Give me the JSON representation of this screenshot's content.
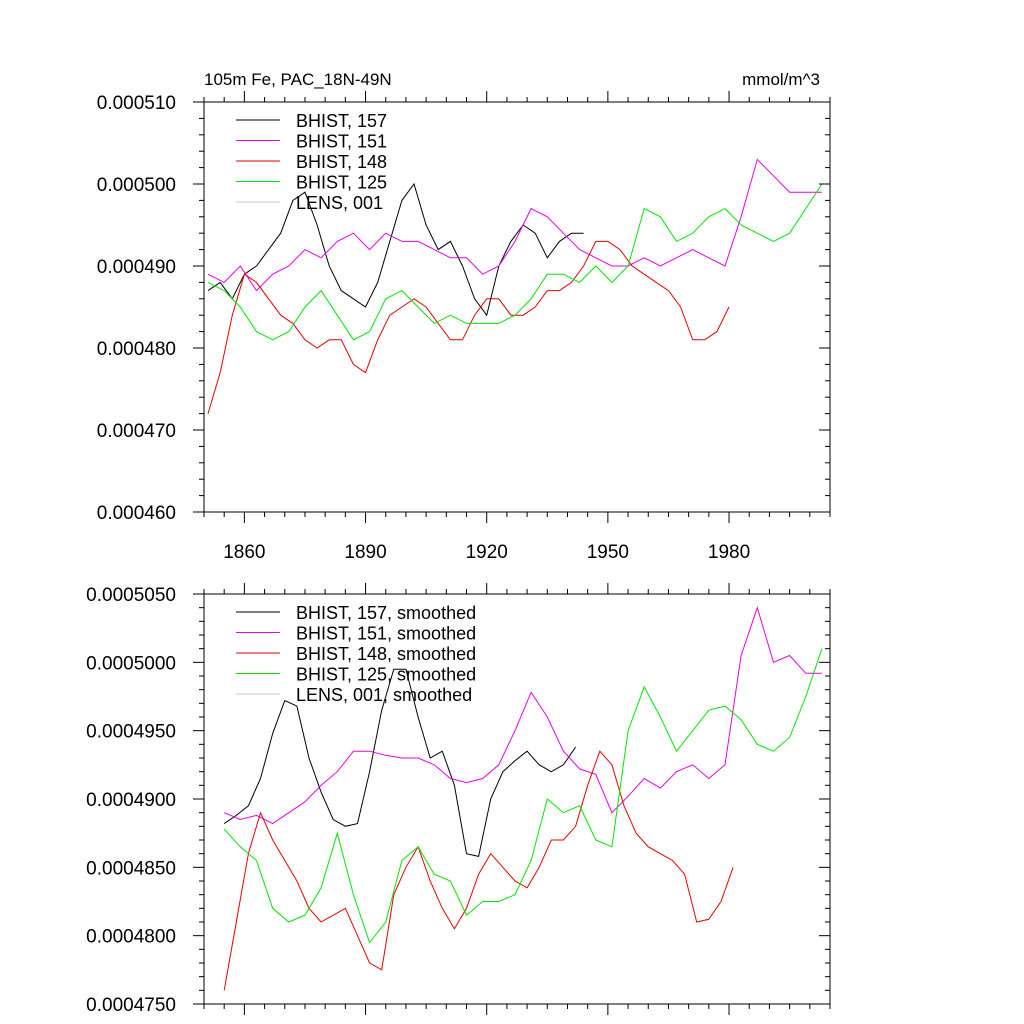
{
  "colors": {
    "axis": "#000000",
    "BHIST_157": "#000000",
    "BHIST_151": "#e600e6",
    "BHIST_148": "#e60000",
    "BHIST_125": "#00e600",
    "LENS_001": "#c8c8c8"
  },
  "chart_data": [
    {
      "type": "line",
      "title": "105m Fe, PAC_18N-49N",
      "units": "mmol/m^3",
      "xlim": [
        1850,
        2005
      ],
      "ylim": [
        0.00046,
        0.00051
      ],
      "xticks": [
        1860,
        1890,
        1920,
        1950,
        1980
      ],
      "xtick_labels": [
        "1860",
        "1890",
        "1920",
        "1950",
        "1980"
      ],
      "yticks": [
        0.00046,
        0.00047,
        0.00048,
        0.00049,
        0.0005,
        0.00051
      ],
      "ytick_labels": [
        "0.000460",
        "0.000470",
        "0.000480",
        "0.000490",
        "0.000500",
        "0.000510"
      ],
      "legend_position": "top-left",
      "series": [
        {
          "name": "BHIST, 157",
          "color": "#000000",
          "x": [
            1851,
            1854,
            1857,
            1860,
            1863,
            1866,
            1869,
            1872,
            1875,
            1878,
            1881,
            1884,
            1887,
            1890,
            1893,
            1896,
            1899,
            1902,
            1905,
            1908,
            1911,
            1914,
            1917,
            1920,
            1923,
            1926,
            1929,
            1932,
            1935,
            1938,
            1941,
            1944
          ],
          "y": [
            0.000487,
            0.000488,
            0.000486,
            0.000489,
            0.00049,
            0.000492,
            0.000494,
            0.000498,
            0.000499,
            0.000495,
            0.00049,
            0.000487,
            0.000486,
            0.000485,
            0.000488,
            0.000493,
            0.000498,
            0.0005,
            0.000495,
            0.000492,
            0.000493,
            0.00049,
            0.000486,
            0.000484,
            0.00049,
            0.000493,
            0.000495,
            0.000494,
            0.000491,
            0.000493,
            0.000494,
            0.000494
          ]
        },
        {
          "name": "BHIST, 151",
          "color": "#e600e6",
          "x": [
            1851,
            1855,
            1859,
            1863,
            1867,
            1871,
            1875,
            1879,
            1883,
            1887,
            1891,
            1895,
            1899,
            1903,
            1907,
            1911,
            1915,
            1919,
            1923,
            1927,
            1931,
            1935,
            1939,
            1943,
            1947,
            1951,
            1955,
            1959,
            1963,
            1967,
            1971,
            1975,
            1979,
            1983,
            1987,
            1991,
            1995,
            1999,
            2003
          ],
          "y": [
            0.000489,
            0.000488,
            0.00049,
            0.000487,
            0.000489,
            0.00049,
            0.000492,
            0.000491,
            0.000493,
            0.000494,
            0.000492,
            0.000494,
            0.000493,
            0.000493,
            0.000492,
            0.000491,
            0.000491,
            0.000489,
            0.00049,
            0.000493,
            0.000497,
            0.000496,
            0.000494,
            0.000492,
            0.000491,
            0.00049,
            0.00049,
            0.000491,
            0.00049,
            0.000491,
            0.000492,
            0.000491,
            0.00049,
            0.000496,
            0.000503,
            0.000501,
            0.000499,
            0.000499,
            0.000499
          ]
        },
        {
          "name": "BHIST, 148",
          "color": "#e60000",
          "x": [
            1851,
            1854,
            1857,
            1860,
            1863,
            1866,
            1869,
            1872,
            1875,
            1878,
            1881,
            1884,
            1887,
            1890,
            1893,
            1896,
            1899,
            1902,
            1905,
            1908,
            1911,
            1914,
            1917,
            1920,
            1923,
            1926,
            1929,
            1932,
            1935,
            1938,
            1941,
            1944,
            1947,
            1950,
            1953,
            1956,
            1959,
            1962,
            1965,
            1968,
            1971,
            1974,
            1977,
            1980
          ],
          "y": [
            0.000472,
            0.000477,
            0.000484,
            0.000489,
            0.000488,
            0.000486,
            0.000484,
            0.000483,
            0.000481,
            0.00048,
            0.000481,
            0.000481,
            0.000478,
            0.000477,
            0.000481,
            0.000484,
            0.000485,
            0.000486,
            0.000485,
            0.000483,
            0.000481,
            0.000481,
            0.000484,
            0.000486,
            0.000486,
            0.000484,
            0.000484,
            0.000485,
            0.000487,
            0.000487,
            0.000488,
            0.00049,
            0.000493,
            0.000493,
            0.000492,
            0.00049,
            0.000489,
            0.000488,
            0.000487,
            0.000485,
            0.000481,
            0.000481,
            0.000482,
            0.000485
          ]
        },
        {
          "name": "BHIST, 125",
          "color": "#00e600",
          "x": [
            1851,
            1855,
            1859,
            1863,
            1867,
            1871,
            1875,
            1879,
            1883,
            1887,
            1891,
            1895,
            1899,
            1903,
            1907,
            1911,
            1915,
            1919,
            1923,
            1927,
            1931,
            1935,
            1939,
            1943,
            1947,
            1951,
            1955,
            1959,
            1963,
            1967,
            1971,
            1975,
            1979,
            1983,
            1987,
            1991,
            1995,
            1999,
            2003
          ],
          "y": [
            0.000488,
            0.000487,
            0.000485,
            0.000482,
            0.000481,
            0.000482,
            0.000485,
            0.000487,
            0.000484,
            0.000481,
            0.000482,
            0.000486,
            0.000487,
            0.000485,
            0.000483,
            0.000484,
            0.000483,
            0.000483,
            0.000483,
            0.000484,
            0.000486,
            0.000489,
            0.000489,
            0.000488,
            0.00049,
            0.000488,
            0.00049,
            0.000497,
            0.000496,
            0.000493,
            0.000494,
            0.000496,
            0.000497,
            0.000495,
            0.000494,
            0.000493,
            0.000494,
            0.000497,
            0.0005
          ]
        },
        {
          "name": "LENS, 001",
          "color": "#c8c8c8",
          "x": [],
          "y": []
        }
      ]
    },
    {
      "type": "line",
      "title": "",
      "xlim": [
        1850,
        2005
      ],
      "ylim": [
        0.000475,
        0.000505
      ],
      "xticks": [
        1860,
        1890,
        1920,
        1950,
        1980
      ],
      "xtick_labels": [],
      "yticks": [
        0.000475,
        0.00048,
        0.000485,
        0.00049,
        0.000495,
        0.0005,
        0.000505
      ],
      "ytick_labels": [
        "0.0004750",
        "0.0004800",
        "0.0004850",
        "0.0004900",
        "0.0004950",
        "0.0005000",
        "0.0005050"
      ],
      "legend_position": "top-left",
      "series": [
        {
          "name": "BHIST, 157, smoothed",
          "color": "#000000",
          "x": [
            1855,
            1858,
            1861,
            1864,
            1867,
            1870,
            1873,
            1876,
            1879,
            1882,
            1885,
            1888,
            1891,
            1894,
            1897,
            1900,
            1903,
            1906,
            1909,
            1912,
            1915,
            1918,
            1921,
            1924,
            1927,
            1930,
            1933,
            1936,
            1939,
            1942
          ],
          "y": [
            0.0004882,
            0.0004888,
            0.0004895,
            0.0004915,
            0.0004948,
            0.0004972,
            0.0004968,
            0.000493,
            0.0004905,
            0.0004885,
            0.000488,
            0.0004882,
            0.000492,
            0.0004965,
            0.0004995,
            0.0004995,
            0.000496,
            0.000493,
            0.0004935,
            0.000491,
            0.000486,
            0.0004858,
            0.00049,
            0.000492,
            0.0004928,
            0.0004935,
            0.0004925,
            0.000492,
            0.0004925,
            0.0004938
          ]
        },
        {
          "name": "BHIST, 151, smoothed",
          "color": "#e600e6",
          "x": [
            1855,
            1859,
            1863,
            1867,
            1871,
            1875,
            1879,
            1883,
            1887,
            1891,
            1895,
            1899,
            1903,
            1907,
            1911,
            1915,
            1919,
            1923,
            1927,
            1931,
            1935,
            1939,
            1943,
            1947,
            1951,
            1955,
            1959,
            1963,
            1967,
            1971,
            1975,
            1979,
            1983,
            1987,
            1991,
            1995,
            1999,
            2003
          ],
          "y": [
            0.000489,
            0.0004885,
            0.0004888,
            0.0004882,
            0.000489,
            0.0004898,
            0.000491,
            0.000492,
            0.0004935,
            0.0004935,
            0.0004932,
            0.000493,
            0.000493,
            0.0004925,
            0.0004915,
            0.0004912,
            0.0004915,
            0.0004925,
            0.000495,
            0.0004978,
            0.000496,
            0.0004935,
            0.0004922,
            0.0004918,
            0.000489,
            0.0004902,
            0.0004915,
            0.0004908,
            0.000492,
            0.0004925,
            0.0004915,
            0.0004925,
            0.0005005,
            0.000504,
            0.0005,
            0.0005005,
            0.0004992,
            0.0004992
          ]
        },
        {
          "name": "BHIST, 148, smoothed",
          "color": "#e60000",
          "x": [
            1855,
            1858,
            1861,
            1864,
            1867,
            1870,
            1873,
            1876,
            1879,
            1882,
            1885,
            1888,
            1891,
            1894,
            1897,
            1900,
            1903,
            1906,
            1909,
            1912,
            1915,
            1918,
            1921,
            1924,
            1927,
            1930,
            1933,
            1936,
            1939,
            1942,
            1945,
            1948,
            1951,
            1954,
            1957,
            1960,
            1963,
            1966,
            1969,
            1972,
            1975,
            1978,
            1981
          ],
          "y": [
            0.000476,
            0.000481,
            0.000486,
            0.000489,
            0.000487,
            0.0004855,
            0.000484,
            0.000482,
            0.000481,
            0.0004815,
            0.000482,
            0.00048,
            0.000478,
            0.0004775,
            0.000483,
            0.000485,
            0.0004865,
            0.000484,
            0.000482,
            0.0004805,
            0.000482,
            0.0004845,
            0.000486,
            0.000485,
            0.000484,
            0.0004835,
            0.000485,
            0.000487,
            0.000487,
            0.000488,
            0.000491,
            0.0004935,
            0.0004925,
            0.0004895,
            0.0004875,
            0.0004865,
            0.000486,
            0.0004855,
            0.0004845,
            0.000481,
            0.0004812,
            0.0004825,
            0.000485
          ]
        },
        {
          "name": "BHIST, 125, smoothed",
          "color": "#00e600",
          "x": [
            1855,
            1859,
            1863,
            1867,
            1871,
            1875,
            1879,
            1883,
            1887,
            1891,
            1895,
            1899,
            1903,
            1907,
            1911,
            1915,
            1919,
            1923,
            1927,
            1931,
            1935,
            1939,
            1943,
            1947,
            1951,
            1955,
            1959,
            1963,
            1967,
            1971,
            1975,
            1979,
            1983,
            1987,
            1991,
            1995,
            1999,
            2003
          ],
          "y": [
            0.0004878,
            0.0004865,
            0.0004855,
            0.000482,
            0.000481,
            0.0004815,
            0.0004835,
            0.0004875,
            0.000483,
            0.0004795,
            0.000481,
            0.0004855,
            0.0004865,
            0.0004845,
            0.000484,
            0.0004815,
            0.0004825,
            0.0004825,
            0.000483,
            0.0004855,
            0.00049,
            0.000489,
            0.0004895,
            0.000487,
            0.0004865,
            0.000495,
            0.0004982,
            0.000496,
            0.0004935,
            0.000495,
            0.0004965,
            0.0004968,
            0.0004958,
            0.000494,
            0.0004935,
            0.0004945,
            0.0004975,
            0.000501
          ]
        },
        {
          "name": "LENS, 001, smoothed",
          "color": "#c8c8c8",
          "x": [],
          "y": []
        }
      ]
    }
  ]
}
